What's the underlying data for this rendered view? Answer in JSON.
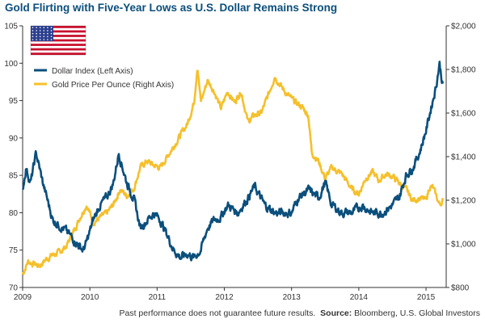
{
  "title": "Gold Flirting with Five-Year Lows as U.S. Dollar Remains Strong",
  "footer": {
    "disclaimer": "Past performance does not guarantee future results.",
    "source_label": "Source:",
    "source": "Bloomberg, U.S. Global Investors"
  },
  "colors": {
    "dollar": "#0b4f7c",
    "gold": "#f5c02c",
    "flag_red": "#c8102e",
    "flag_blue": "#2c3f8f"
  },
  "icons": {
    "flag": "us-flag-icon"
  },
  "chart_data": {
    "type": "line",
    "x_ticks": [
      "2009",
      "2010",
      "2011",
      "2012",
      "2013",
      "2014",
      "2015"
    ],
    "xlim": [
      2009,
      2015.3
    ],
    "y_left": {
      "ticks": [
        "70",
        "75",
        "80",
        "85",
        "90",
        "95",
        "100",
        "105"
      ],
      "lim": [
        70,
        105
      ]
    },
    "y_right": {
      "ticks": [
        "$800",
        "$1,000",
        "$1,200",
        "$1,400",
        "$1,600",
        "$1,800",
        "$2,000"
      ],
      "lim": [
        800,
        2000
      ]
    },
    "grid": false,
    "legend_position": "top-left",
    "series": [
      {
        "name": "Dollar Index (Left Axis)",
        "axis": "left",
        "x": [
          2009.0,
          2009.05,
          2009.12,
          2009.2,
          2009.3,
          2009.45,
          2009.6,
          2009.75,
          2009.9,
          2009.95,
          2010.05,
          2010.15,
          2010.25,
          2010.35,
          2010.43,
          2010.55,
          2010.65,
          2010.75,
          2010.85,
          2010.95,
          2011.05,
          2011.15,
          2011.25,
          2011.35,
          2011.45,
          2011.55,
          2011.65,
          2011.75,
          2011.85,
          2011.95,
          2012.05,
          2012.2,
          2012.35,
          2012.45,
          2012.6,
          2012.75,
          2012.9,
          2013.0,
          2013.1,
          2013.25,
          2013.4,
          2013.5,
          2013.6,
          2013.75,
          2013.9,
          2014.05,
          2014.2,
          2014.35,
          2014.5,
          2014.6,
          2014.7,
          2014.8,
          2014.9,
          2015.0,
          2015.1,
          2015.15,
          2015.2,
          2015.25
        ],
        "y": [
          83,
          86,
          84,
          88,
          84,
          79,
          78,
          76.5,
          75,
          76,
          79,
          81,
          82,
          84,
          88,
          84,
          82,
          78,
          79,
          80,
          79,
          77,
          75,
          74,
          74.5,
          74,
          75,
          78,
          79,
          79.5,
          81,
          80,
          82,
          83.5,
          81,
          80,
          80,
          80,
          82,
          83,
          82,
          84,
          81,
          80,
          80,
          81,
          80,
          80,
          81,
          82,
          85,
          86,
          88,
          91,
          95,
          97,
          100,
          97
        ]
      },
      {
        "name": "Gold Price Per Ounce (Right Axis)",
        "axis": "right",
        "x": [
          2009.0,
          2009.08,
          2009.15,
          2009.25,
          2009.35,
          2009.45,
          2009.55,
          2009.65,
          2009.75,
          2009.85,
          2009.95,
          2010.05,
          2010.15,
          2010.25,
          2010.35,
          2010.45,
          2010.55,
          2010.65,
          2010.75,
          2010.85,
          2010.95,
          2011.05,
          2011.15,
          2011.25,
          2011.35,
          2011.45,
          2011.55,
          2011.6,
          2011.65,
          2011.75,
          2011.85,
          2011.95,
          2012.05,
          2012.15,
          2012.25,
          2012.35,
          2012.45,
          2012.55,
          2012.65,
          2012.75,
          2012.85,
          2012.95,
          2013.05,
          2013.15,
          2013.25,
          2013.3,
          2013.4,
          2013.5,
          2013.6,
          2013.75,
          2013.9,
          2014.0,
          2014.1,
          2014.2,
          2014.3,
          2014.4,
          2014.5,
          2014.6,
          2014.7,
          2014.8,
          2014.9,
          2015.0,
          2015.05,
          2015.1,
          2015.15,
          2015.2,
          2015.25
        ],
        "y": [
          860,
          920,
          910,
          900,
          930,
          950,
          960,
          990,
          1050,
          1120,
          1180,
          1100,
          1120,
          1140,
          1180,
          1250,
          1220,
          1250,
          1350,
          1380,
          1360,
          1350,
          1400,
          1450,
          1500,
          1550,
          1650,
          1820,
          1650,
          1750,
          1700,
          1620,
          1700,
          1650,
          1700,
          1560,
          1590,
          1600,
          1680,
          1770,
          1720,
          1680,
          1650,
          1630,
          1590,
          1420,
          1380,
          1300,
          1350,
          1320,
          1250,
          1230,
          1300,
          1330,
          1290,
          1320,
          1310,
          1280,
          1250,
          1200,
          1210,
          1200,
          1260,
          1260,
          1220,
          1180,
          1200
        ]
      }
    ]
  }
}
